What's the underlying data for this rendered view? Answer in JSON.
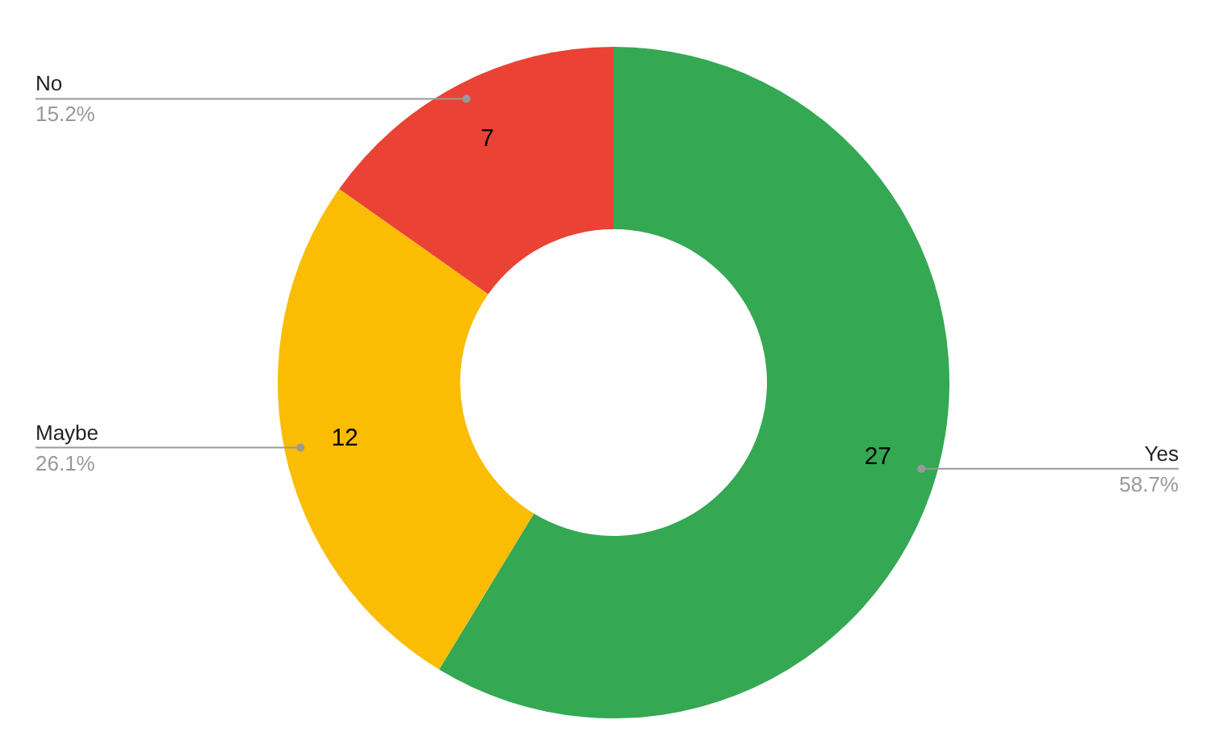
{
  "chart_data": {
    "type": "donut",
    "categories": [
      "Yes",
      "Maybe",
      "No"
    ],
    "values": [
      27,
      12,
      7
    ],
    "colors": [
      "#34a853",
      "#fbbc04",
      "#ea4335"
    ],
    "data_labels": true,
    "annotations": [
      "58.7%",
      "26.1%",
      "15.2%"
    ]
  }
}
